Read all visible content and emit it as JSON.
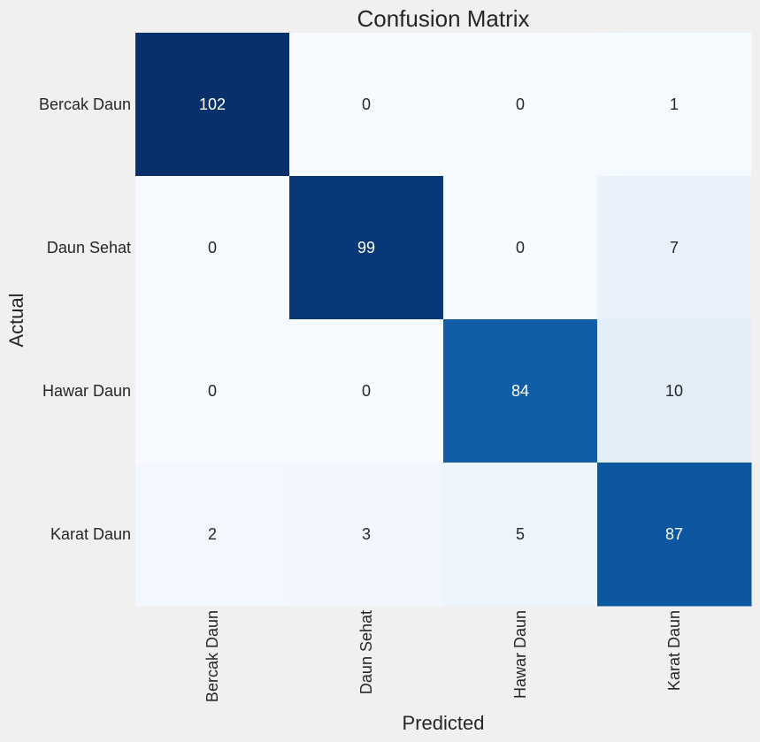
{
  "chart_data": {
    "type": "heatmap",
    "title": "Confusion Matrix",
    "xlabel": "Predicted",
    "ylabel": "Actual",
    "x_categories": [
      "Bercak Daun",
      "Daun Sehat",
      "Hawar Daun",
      "Karat Daun"
    ],
    "y_categories": [
      "Bercak Daun",
      "Daun Sehat",
      "Hawar Daun",
      "Karat Daun"
    ],
    "values": [
      [
        102,
        0,
        0,
        1
      ],
      [
        0,
        99,
        0,
        7
      ],
      [
        0,
        0,
        84,
        10
      ],
      [
        2,
        3,
        5,
        87
      ]
    ],
    "colormap": "Blues",
    "vmin": 0,
    "vmax": 102,
    "colorbar": false,
    "grid": false,
    "background_color": "#f0f0f0"
  }
}
